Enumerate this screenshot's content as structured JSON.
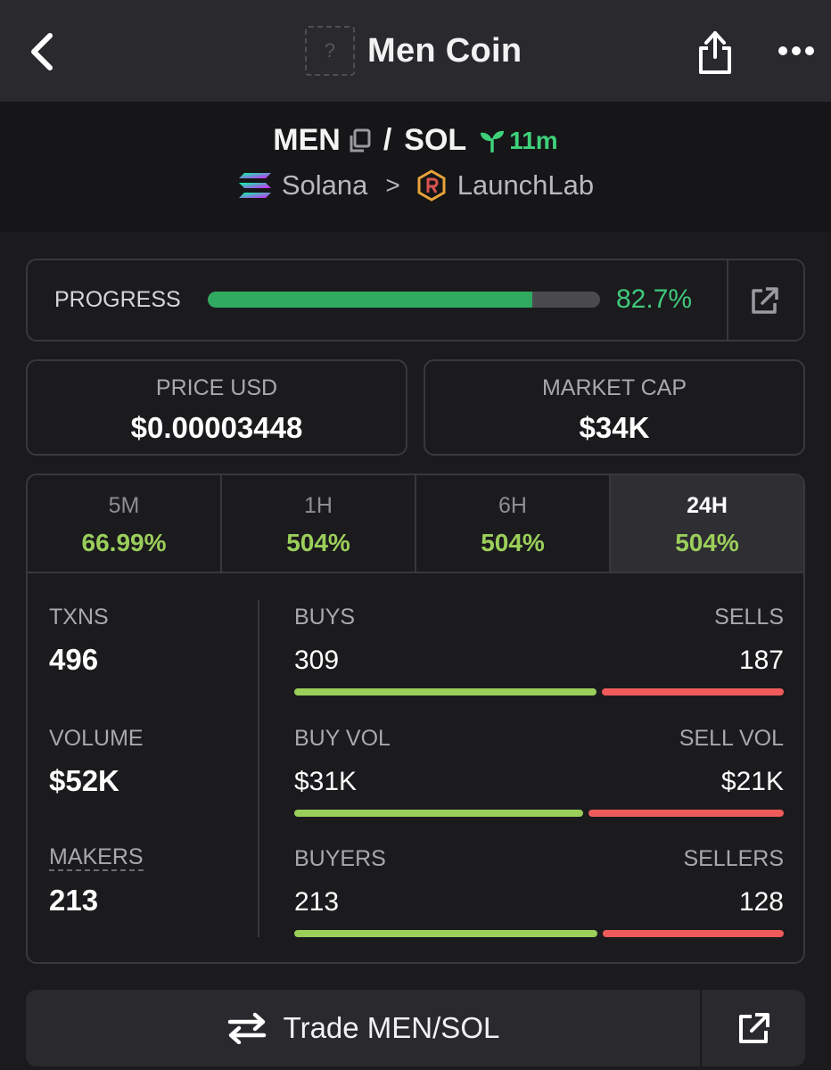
{
  "nav": {
    "title": "Men Coin",
    "token_icon_placeholder": "?",
    "icons": [
      "chevron-left-icon",
      "share-icon",
      "more-dots-icon"
    ]
  },
  "pair": {
    "base": "MEN",
    "separator": "/",
    "quote": "SOL",
    "age": "11m",
    "chain": "Solana",
    "dex": "LaunchLab",
    "chevron": ">",
    "colors": {
      "age": "#3ed17a"
    }
  },
  "progress": {
    "label": "PROGRESS",
    "value_text": "82.7%",
    "fraction": 0.827,
    "colors": {
      "fill": "#2faa60",
      "text": "#3ec97a"
    }
  },
  "price": {
    "label": "PRICE USD",
    "value": "$0.00003448"
  },
  "market_cap": {
    "label": "MARKET CAP",
    "value": "$34K"
  },
  "periods": [
    {
      "label": "5M",
      "change": "66.99%"
    },
    {
      "label": "1H",
      "change": "504%"
    },
    {
      "label": "6H",
      "change": "504%"
    },
    {
      "label": "24H",
      "change": "504%",
      "active": true
    }
  ],
  "metrics": {
    "txns": {
      "label": "TXNS",
      "value": "496"
    },
    "volume": {
      "label": "VOLUME",
      "value": "$52K"
    },
    "makers": {
      "label": "MAKERS",
      "value": "213"
    }
  },
  "splits": {
    "txns": {
      "left_label": "BUYS",
      "right_label": "SELLS",
      "left_value": "309",
      "right_value": "187",
      "buy_fraction": 0.623
    },
    "volume": {
      "left_label": "BUY VOL",
      "right_label": "SELL VOL",
      "left_value": "$31K",
      "right_value": "$21K",
      "buy_fraction": 0.596
    },
    "makers": {
      "left_label": "BUYERS",
      "right_label": "SELLERS",
      "left_value": "213",
      "right_value": "128",
      "buy_fraction": 0.625
    }
  },
  "trade": {
    "label": "Trade MEN/SOL"
  },
  "colors": {
    "buy": "#9bcf5a",
    "sell": "#ef5b5b",
    "change_positive": "#9bcf5a"
  }
}
